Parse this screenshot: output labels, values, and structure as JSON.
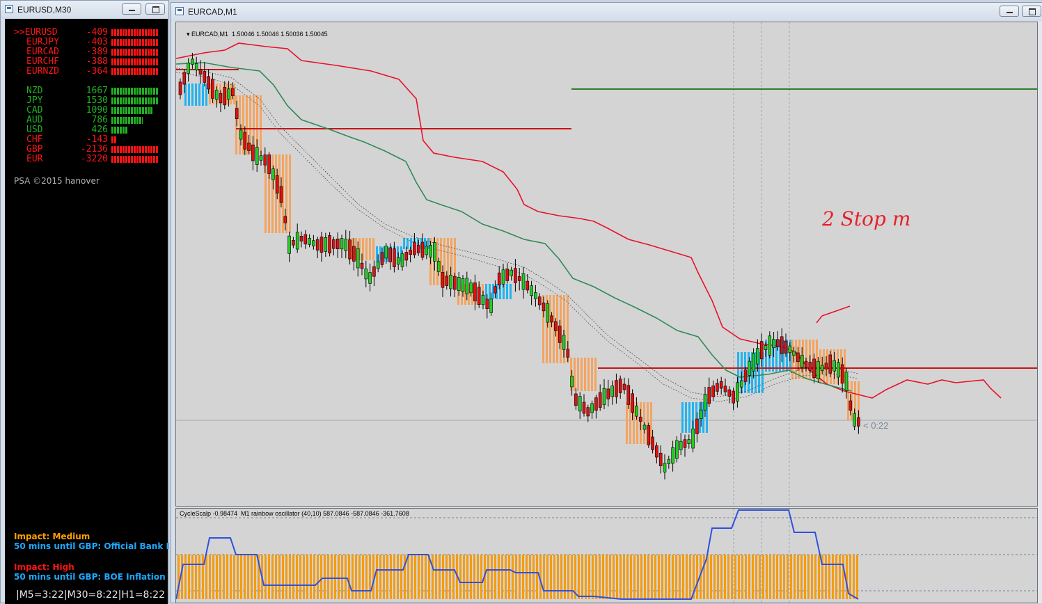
{
  "left_window": {
    "title": "EURUSD,M30",
    "pairs": [
      {
        "label": ">>EURUSD",
        "value": "-409",
        "fill": 1.0,
        "color": "#ff1414"
      },
      {
        "label": "EURJPY",
        "value": "-403",
        "fill": 1.0,
        "color": "#ff1414"
      },
      {
        "label": "EURCAD",
        "value": "-389",
        "fill": 1.0,
        "color": "#ff1414"
      },
      {
        "label": "EURCHF",
        "value": "-388",
        "fill": 1.0,
        "color": "#ff1414"
      },
      {
        "label": "EURNZD",
        "value": "-364",
        "fill": 1.0,
        "color": "#ff1414"
      }
    ],
    "currencies": [
      {
        "label": "NZD",
        "value": "1667",
        "fill": 1.0,
        "color": "#22b022"
      },
      {
        "label": "JPY",
        "value": "1530",
        "fill": 1.0,
        "color": "#22b022"
      },
      {
        "label": "CAD",
        "value": "1090",
        "fill": 0.88,
        "color": "#22b022"
      },
      {
        "label": "AUD",
        "value": "786",
        "fill": 0.66,
        "color": "#22b022"
      },
      {
        "label": "USD",
        "value": "426",
        "fill": 0.36,
        "color": "#22b022"
      },
      {
        "label": "CHF",
        "value": "-143",
        "fill": 0.12,
        "color": "#ff1414"
      },
      {
        "label": "GBP",
        "value": "-2136",
        "fill": 1.0,
        "color": "#ff1414"
      },
      {
        "label": "EUR",
        "value": "-3220",
        "fill": 1.0,
        "color": "#ff1414"
      }
    ],
    "copyright": "PSA ©2015 hanover",
    "news": [
      {
        "impact": "Impact: Medium",
        "impact_color": "#ffa000",
        "text": "50 mins until GBP: Official Bank I"
      },
      {
        "impact": "Impact: High",
        "impact_color": "#ff1414",
        "text": "50 mins until GBP: BOE Inflation"
      }
    ],
    "timers": "|M5=3:22|M30=8:22|H1=8:22"
  },
  "main_window": {
    "title": "EURCAD,M1",
    "ohlc_label": "EURCAD,M1  1.50046 1.50046 1.50036 1.50045",
    "countdown": "< 0:22",
    "osc_label": "CycleScalp -0.98474  M1 rainbow oscillator (40,10) 587.0846 -587.0846 -361.7608",
    "annotation_text": "2  Stop  m"
  },
  "colors": {
    "bull": "#22cc22",
    "bear": "#dd1111",
    "orange_bar": "#f4a460",
    "blue_bar": "#22b4f0",
    "red_line": "#e8102a",
    "green_line": "#2e8b57",
    "hline_red": "#c81414",
    "hline_green": "#2e7d32"
  },
  "icons": [
    "window-icon",
    "minimize-icon",
    "maximize-icon",
    "dropdown-arrow-icon"
  ]
}
